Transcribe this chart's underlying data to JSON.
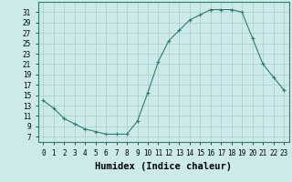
{
  "x": [
    0,
    1,
    2,
    3,
    4,
    5,
    6,
    7,
    8,
    9,
    10,
    11,
    12,
    13,
    14,
    15,
    16,
    17,
    18,
    19,
    20,
    21,
    22,
    23
  ],
  "y": [
    14,
    12.5,
    10.5,
    9.5,
    8.5,
    8,
    7.5,
    7.5,
    7.5,
    10,
    15.5,
    21.5,
    25.5,
    27.5,
    29.5,
    30.5,
    31.5,
    31.5,
    31.5,
    31,
    26,
    21,
    18.5,
    16
  ],
  "line_color": "#2d7d6e",
  "marker_color": "#2d7d6e",
  "bg_color": "#cceaea",
  "grid_color": "#aacccc",
  "xlabel": "Humidex (Indice chaleur)",
  "xlim": [
    -0.5,
    23.5
  ],
  "ylim": [
    6,
    33
  ],
  "yticks": [
    7,
    9,
    11,
    13,
    15,
    17,
    19,
    21,
    23,
    25,
    27,
    29,
    31
  ],
  "xticks": [
    0,
    1,
    2,
    3,
    4,
    5,
    6,
    7,
    8,
    9,
    10,
    11,
    12,
    13,
    14,
    15,
    16,
    17,
    18,
    19,
    20,
    21,
    22,
    23
  ],
  "tick_fontsize": 5.5,
  "xlabel_fontsize": 7.5
}
